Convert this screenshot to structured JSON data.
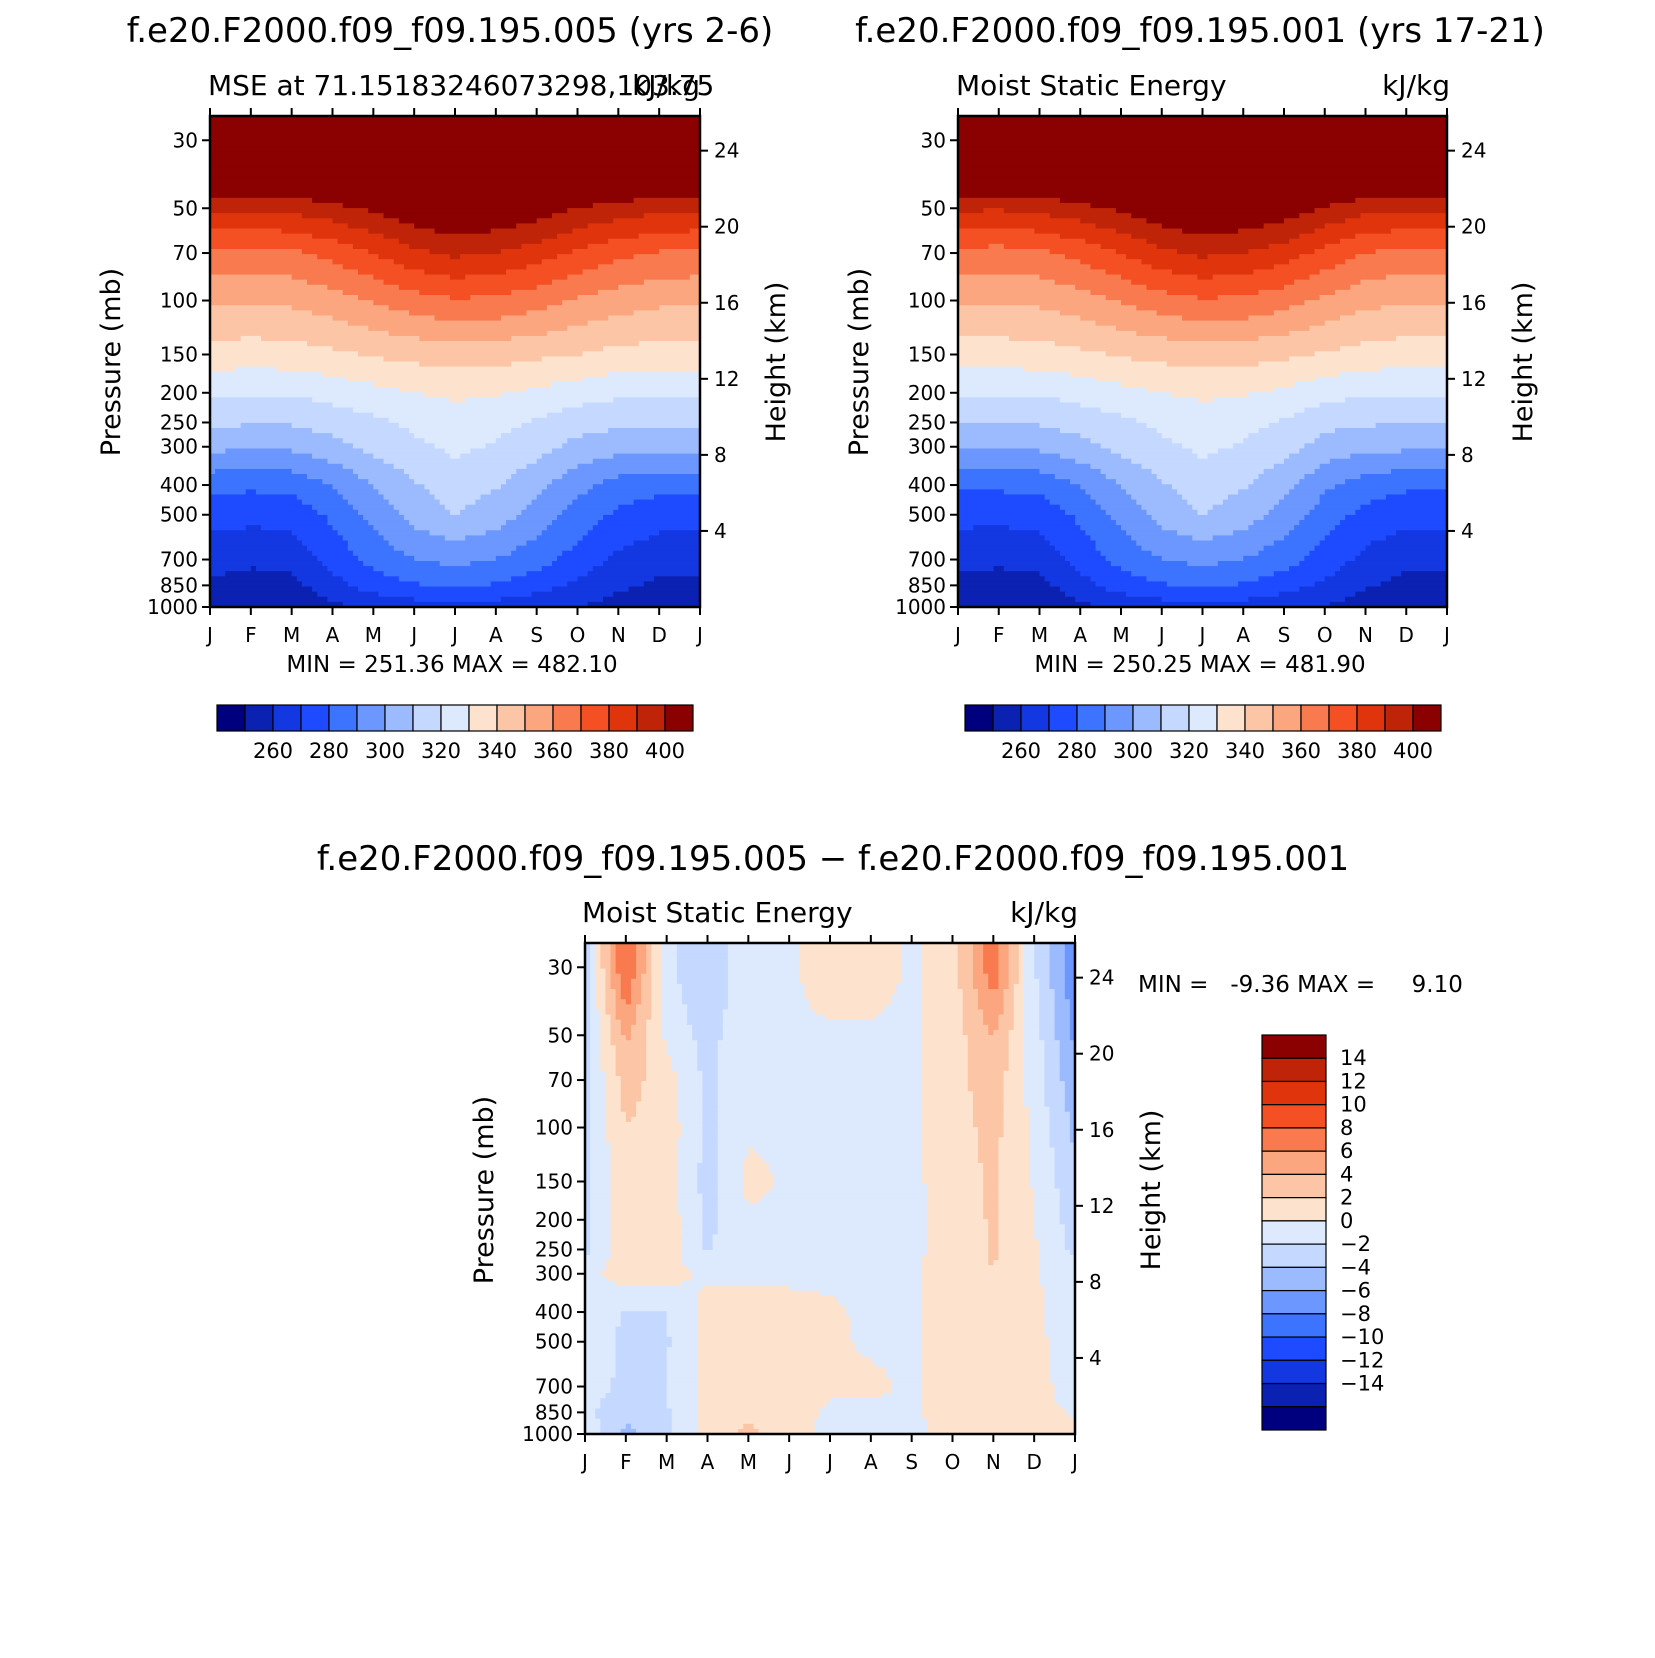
{
  "chart_data": [
    {
      "type": "contour",
      "title": "f.e20.F2000.f09_f09.195.005 (yrs 2-6)",
      "subtitle_left": "MSE at 71.15183246073298,103.75",
      "subtitle_right": "kJ/kg",
      "xlabel": "",
      "ylabel": "Pressure (mb)",
      "ylabel_right": "Height (km)",
      "months": [
        "J",
        "F",
        "M",
        "A",
        "M",
        "J",
        "J",
        "A",
        "S",
        "O",
        "N",
        "D",
        "J"
      ],
      "pressure_ticks": [
        30,
        50,
        70,
        100,
        150,
        200,
        250,
        300,
        400,
        500,
        700,
        850,
        1000
      ],
      "height_ticks": [
        4,
        8,
        12,
        16,
        20,
        24
      ],
      "ylim": [
        1000,
        25
      ],
      "min_max_text": "MIN = 251.36 MAX = 482.10",
      "levels": [
        250,
        260,
        270,
        280,
        290,
        300,
        310,
        320,
        330,
        340,
        350,
        360,
        370,
        380,
        390,
        400
      ],
      "colorbar_labels": [
        260,
        280,
        300,
        320,
        340,
        360,
        380,
        400
      ],
      "z_profiles": {
        "1000": [
          253,
          252,
          253,
          258,
          262,
          265,
          268,
          266,
          263,
          260,
          256,
          253,
          253
        ],
        "850": [
          258,
          256,
          257,
          266,
          275,
          279,
          282,
          279,
          274,
          268,
          262,
          258,
          258
        ],
        "700": [
          264,
          262,
          263,
          274,
          283,
          290,
          293,
          290,
          284,
          276,
          268,
          264,
          264
        ],
        "500": [
          274,
          273,
          274,
          282,
          293,
          304,
          310,
          305,
          296,
          286,
          278,
          274,
          274
        ],
        "400": [
          283,
          282,
          283,
          290,
          300,
          309,
          315,
          311,
          303,
          293,
          286,
          283,
          283
        ],
        "300": [
          303,
          301,
          302,
          307,
          313,
          318,
          322,
          319,
          314,
          307,
          304,
          303,
          303
        ],
        "250": [
          312,
          311,
          311,
          314,
          318,
          322,
          325,
          323,
          319,
          314,
          312,
          312,
          312
        ],
        "200": [
          322,
          321,
          321,
          324,
          327,
          330,
          332,
          331,
          328,
          325,
          322,
          322,
          322
        ],
        "150": [
          336,
          335,
          336,
          338,
          341,
          343,
          345,
          344,
          342,
          340,
          337,
          336,
          336
        ],
        "100": [
          352,
          351,
          352,
          356,
          361,
          366,
          369,
          368,
          364,
          359,
          355,
          352,
          352
        ],
        "70": [
          368,
          367,
          368,
          373,
          380,
          388,
          392,
          390,
          385,
          378,
          373,
          369,
          368
        ],
        "50": [
          392,
          392,
          393,
          397,
          402,
          408,
          412,
          410,
          406,
          400,
          396,
          393,
          392
        ],
        "30": [
          440,
          440,
          440,
          440,
          440,
          440,
          440,
          440,
          440,
          440,
          440,
          440,
          440
        ]
      }
    },
    {
      "type": "contour",
      "title": "f.e20.F2000.f09_f09.195.001 (yrs 17-21)",
      "subtitle_left": "Moist Static Energy",
      "subtitle_right": "kJ/kg",
      "xlabel": "",
      "ylabel": "Pressure (mb)",
      "ylabel_right": "Height (km)",
      "months": [
        "J",
        "F",
        "M",
        "A",
        "M",
        "J",
        "J",
        "A",
        "S",
        "O",
        "N",
        "D",
        "J"
      ],
      "pressure_ticks": [
        30,
        50,
        70,
        100,
        150,
        200,
        250,
        300,
        400,
        500,
        700,
        850,
        1000
      ],
      "height_ticks": [
        4,
        8,
        12,
        16,
        20,
        24
      ],
      "ylim": [
        1000,
        25
      ],
      "min_max_text": "MIN = 250.25 MAX = 481.90",
      "levels": [
        250,
        260,
        270,
        280,
        290,
        300,
        310,
        320,
        330,
        340,
        350,
        360,
        370,
        380,
        390,
        400
      ],
      "colorbar_labels": [
        260,
        280,
        300,
        320,
        340,
        360,
        380,
        400
      ],
      "z_profiles": {
        "1000": [
          252,
          252,
          253,
          258,
          262,
          265,
          268,
          266,
          263,
          260,
          255,
          252,
          252
        ],
        "850": [
          257,
          256,
          257,
          266,
          275,
          279,
          282,
          279,
          274,
          268,
          261,
          257,
          257
        ],
        "700": [
          263,
          262,
          263,
          274,
          283,
          290,
          293,
          290,
          284,
          276,
          267,
          263,
          263
        ],
        "500": [
          273,
          273,
          274,
          282,
          293,
          304,
          310,
          305,
          296,
          285,
          277,
          273,
          273
        ],
        "400": [
          282,
          282,
          283,
          290,
          300,
          309,
          315,
          311,
          303,
          292,
          285,
          282,
          282
        ],
        "300": [
          302,
          301,
          302,
          307,
          313,
          318,
          322,
          319,
          314,
          306,
          303,
          302,
          302
        ],
        "250": [
          311,
          311,
          311,
          314,
          318,
          322,
          325,
          323,
          319,
          313,
          311,
          311,
          311
        ],
        "200": [
          321,
          321,
          321,
          324,
          327,
          330,
          332,
          331,
          328,
          324,
          321,
          321,
          321
        ],
        "150": [
          335,
          335,
          336,
          338,
          341,
          343,
          345,
          344,
          342,
          339,
          336,
          335,
          335
        ],
        "100": [
          351,
          351,
          352,
          356,
          361,
          366,
          369,
          368,
          364,
          358,
          353,
          351,
          351
        ],
        "70": [
          367,
          366,
          368,
          373,
          380,
          388,
          392,
          390,
          385,
          377,
          370,
          367,
          367
        ],
        "50": [
          392,
          391,
          393,
          397,
          402,
          408,
          412,
          410,
          406,
          399,
          393,
          392,
          392
        ],
        "30": [
          440,
          440,
          440,
          440,
          440,
          440,
          440,
          440,
          440,
          440,
          440,
          440,
          440
        ]
      }
    },
    {
      "type": "contour",
      "title": "f.e20.F2000.f09_f09.195.005 − f.e20.F2000.f09_f09.195.001",
      "subtitle_left": "Moist Static Energy",
      "subtitle_right": "kJ/kg",
      "xlabel": "",
      "ylabel": "Pressure (mb)",
      "ylabel_right": "Height (km)",
      "months": [
        "J",
        "F",
        "M",
        "A",
        "M",
        "J",
        "J",
        "A",
        "S",
        "O",
        "N",
        "D",
        "J"
      ],
      "pressure_ticks": [
        30,
        50,
        70,
        100,
        150,
        200,
        250,
        300,
        400,
        500,
        700,
        850,
        1000
      ],
      "height_ticks": [
        4,
        8,
        12,
        16,
        20,
        24
      ],
      "ylim": [
        1000,
        25
      ],
      "min_max_text": "MIN =   -9.36 MAX =     9.10",
      "levels": [
        -16,
        -14,
        -12,
        -10,
        -8,
        -6,
        -4,
        -2,
        0,
        2,
        4,
        6,
        8,
        10,
        12,
        14,
        16
      ],
      "colorbar_labels": [
        14,
        12,
        10,
        8,
        6,
        4,
        2,
        0,
        -2,
        -4,
        -6,
        -8,
        -10,
        -12,
        -14
      ],
      "z_profiles": {
        "1000": [
          -0.5,
          -4.5,
          -2.5,
          0.8,
          2.5,
          0.8,
          -0.5,
          -0.5,
          -0.5,
          0.6,
          1.0,
          0.5,
          0.2
        ],
        "850": [
          -1.5,
          -3.5,
          -2.2,
          0.6,
          1.6,
          0.8,
          -0.3,
          -0.4,
          -0.3,
          0.8,
          1.0,
          0.3,
          -0.1
        ],
        "700": [
          -1.0,
          -2.5,
          -2.0,
          0.5,
          1.2,
          0.6,
          0.3,
          0.4,
          -0.3,
          1.0,
          1.4,
          0.4,
          -0.5
        ],
        "500": [
          -0.8,
          -2.4,
          -2.2,
          0.6,
          0.9,
          0.6,
          0.4,
          -0.3,
          -0.3,
          1.0,
          1.6,
          0.4,
          -0.8
        ],
        "400": [
          -0.7,
          -2.2,
          -2.0,
          0.6,
          0.7,
          0.5,
          0.2,
          -0.3,
          -0.3,
          0.9,
          1.4,
          0.3,
          -0.9
        ],
        "300": [
          -0.6,
          1.0,
          0.7,
          -0.3,
          -0.3,
          -0.3,
          -0.3,
          -0.3,
          -0.3,
          0.9,
          2.0,
          0.2,
          -1.0
        ],
        "250": [
          -2.5,
          1.4,
          1.0,
          -2.2,
          -0.4,
          -0.4,
          -0.4,
          -0.4,
          -0.4,
          0.8,
          2.2,
          0.2,
          -2.5
        ],
        "200": [
          -2.6,
          1.6,
          1.2,
          -2.6,
          -0.3,
          -0.3,
          -0.3,
          -0.4,
          -0.4,
          0.7,
          2.3,
          0.1,
          -3.0
        ],
        "150": [
          -2.8,
          1.8,
          1.2,
          -2.8,
          0.5,
          -0.3,
          -0.3,
          -0.3,
          -0.4,
          0.9,
          2.4,
          -0.2,
          -3.5
        ],
        "100": [
          -2.4,
          2.0,
          1.2,
          -2.6,
          -0.3,
          -0.3,
          -0.4,
          -0.4,
          -0.4,
          1.2,
          2.6,
          -0.5,
          -4.5
        ],
        "70": [
          -2.4,
          2.8,
          1.0,
          -2.6,
          -0.3,
          -0.3,
          -0.4,
          -0.4,
          -0.4,
          1.3,
          3.0,
          -0.8,
          -5.5
        ],
        "50": [
          -2.5,
          4.5,
          -0.5,
          -2.8,
          -0.3,
          -0.3,
          -0.3,
          -0.3,
          -0.4,
          1.0,
          4.2,
          -1.0,
          -6.5
        ],
        "30": [
          -3.0,
          8.5,
          -1.5,
          -4.0,
          -0.4,
          -0.3,
          1.0,
          1.0,
          -0.3,
          1.0,
          7.5,
          -1.8,
          -7.5
        ]
      }
    }
  ],
  "colors": {
    "mse_palette": [
      "#00007f",
      "#0a21b2",
      "#1337e0",
      "#1e4bff",
      "#3c73ff",
      "#6b97ff",
      "#9cbbff",
      "#c5d8ff",
      "#dde9fd",
      "#fde3cd",
      "#fcc6a6",
      "#fba67e",
      "#f97a4e",
      "#f45024",
      "#e0350c",
      "#bf2408",
      "#8b0000"
    ],
    "diff_palette": [
      "#00007f",
      "#0a21b2",
      "#1337e0",
      "#1e4bff",
      "#3c73ff",
      "#6b97ff",
      "#9cbbff",
      "#c5d8ff",
      "#dde9fd",
      "#fde3cd",
      "#fcc6a6",
      "#fba67e",
      "#f97a4e",
      "#f45024",
      "#e0350c",
      "#bf2408",
      "#8b0000"
    ]
  }
}
